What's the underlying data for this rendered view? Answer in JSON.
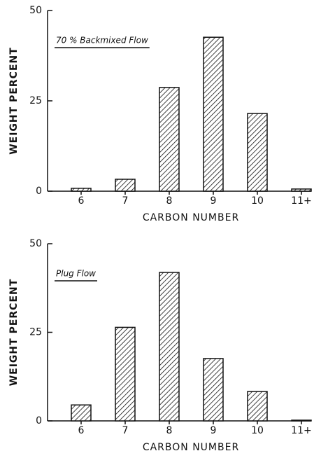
{
  "chart_data": [
    {
      "type": "bar",
      "annotation": "70 % Backmixed Flow",
      "xlabel": "CARBON NUMBER",
      "ylabel": "WEIGHT  PERCENT",
      "categories": [
        "6",
        "7",
        "8",
        "9",
        "10",
        "11+"
      ],
      "values": [
        0.8,
        3.3,
        28.7,
        42.6,
        21.5,
        0.6
      ],
      "color": "#111111",
      "ylim": [
        0,
        50
      ],
      "yticks": [
        0,
        25,
        50
      ]
    },
    {
      "type": "bar",
      "annotation": "Plug Flow",
      "xlabel": "CARBON  NUMBER",
      "ylabel": "WEIGHT  PERCENT",
      "categories": [
        "6",
        "7",
        "8",
        "9",
        "10",
        "11+"
      ],
      "values": [
        4.5,
        26.4,
        41.9,
        17.6,
        8.3,
        0.2
      ],
      "color": "#111111",
      "ylim": [
        0,
        50
      ],
      "yticks": [
        0,
        25,
        50
      ]
    }
  ]
}
